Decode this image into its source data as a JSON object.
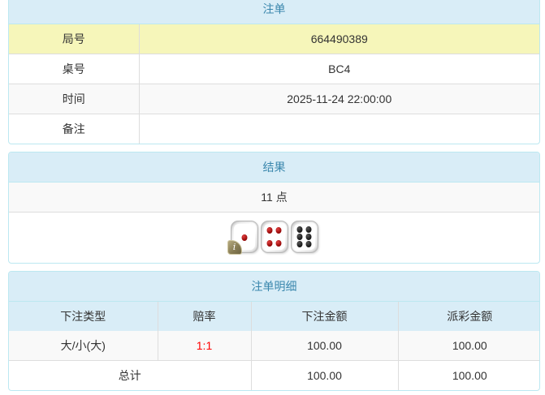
{
  "colors": {
    "panel_border": "#bce8f1",
    "heading_bg": "#d9edf7",
    "heading_text": "#3a87ad",
    "highlight_row_bg": "#f6f6ba",
    "stripe_row_bg": "#f9f9f9",
    "odds_text": "#ff0000",
    "body_text": "#333333"
  },
  "panels": {
    "bet": {
      "title": "注单",
      "rows": [
        {
          "label": "局号",
          "value": "664490389"
        },
        {
          "label": "桌号",
          "value": "BC4"
        },
        {
          "label": "时间",
          "value": "2025-11-24 22:00:00"
        },
        {
          "label": "备注",
          "value": ""
        }
      ]
    },
    "result": {
      "title": "结果",
      "points": "11 点",
      "dice": [
        {
          "value": 1,
          "color": "red"
        },
        {
          "value": 4,
          "color": "red"
        },
        {
          "value": 6,
          "color": "black"
        }
      ]
    },
    "detail": {
      "title": "注单明细",
      "columns": [
        "下注类型",
        "赔率",
        "下注金额",
        "派彩金额"
      ],
      "rows": [
        {
          "type": "大/小(大)",
          "odds": "1:1",
          "bet": "100.00",
          "payout": "100.00"
        }
      ],
      "total": {
        "label": "总计",
        "bet": "100.00",
        "payout": "100.00"
      }
    }
  },
  "icons": {
    "info_badge": "i"
  }
}
